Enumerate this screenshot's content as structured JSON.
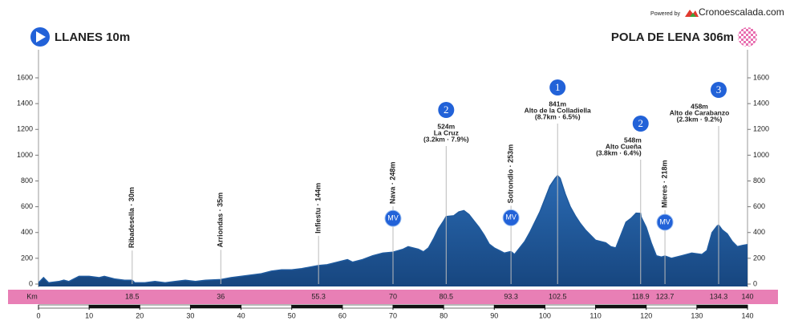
{
  "chart_data": {
    "type": "area",
    "powered_by": "Powered by",
    "brand": "Cronoescalada.com",
    "start": "LLANES 10m",
    "finish": "POLA DE LENA 306m",
    "km_title": "Km",
    "color": "#1f5a9e",
    "x": [
      0,
      1,
      2,
      4,
      5,
      6,
      7,
      8,
      10,
      12,
      13,
      15,
      17,
      18.5,
      19,
      21,
      23,
      25,
      27,
      29,
      31,
      33,
      36,
      38,
      40,
      42,
      44,
      46,
      48,
      50,
      52,
      55.3,
      57,
      59,
      61,
      62,
      64,
      66,
      68,
      70,
      72,
      73,
      75,
      76,
      77,
      78,
      79,
      80,
      80.5,
      82,
      83,
      84,
      85,
      86,
      87,
      88,
      89,
      90,
      91,
      92,
      93.3,
      94,
      95,
      96,
      97,
      98,
      99,
      100,
      101,
      102,
      102.5,
      103,
      104,
      105,
      106,
      107,
      108,
      109,
      110,
      111,
      112,
      113,
      114,
      115,
      116,
      117,
      118,
      118.9,
      119,
      120,
      121,
      122,
      123,
      123.7,
      125,
      127,
      129,
      131,
      132,
      133,
      134,
      134.3,
      135,
      136,
      137,
      138,
      139,
      140
    ],
    "values": [
      10,
      50,
      10,
      20,
      30,
      20,
      40,
      60,
      60,
      50,
      60,
      40,
      30,
      30,
      10,
      10,
      20,
      10,
      20,
      30,
      20,
      30,
      35,
      50,
      60,
      70,
      80,
      100,
      110,
      110,
      120,
      144,
      150,
      170,
      190,
      170,
      190,
      220,
      240,
      248,
      270,
      290,
      270,
      250,
      280,
      350,
      430,
      490,
      524,
      530,
      560,
      570,
      540,
      490,
      440,
      380,
      310,
      280,
      260,
      240,
      253,
      230,
      280,
      330,
      400,
      480,
      560,
      660,
      760,
      820,
      841,
      820,
      700,
      600,
      530,
      470,
      420,
      380,
      340,
      330,
      320,
      290,
      280,
      380,
      480,
      510,
      550,
      548,
      520,
      440,
      320,
      220,
      210,
      218,
      200,
      220,
      240,
      230,
      260,
      400,
      450,
      458,
      420,
      390,
      330,
      290,
      300,
      306
    ],
    "xlim": [
      0,
      140
    ],
    "xticks": [
      0,
      10,
      20,
      30,
      40,
      50,
      60,
      70,
      80,
      90,
      100,
      110,
      120,
      130,
      140
    ],
    "ylim": [
      0,
      1600
    ],
    "yticks": [
      0,
      200,
      400,
      600,
      800,
      1000,
      1200,
      1400,
      1600
    ],
    "points": [
      {
        "km": 18.5,
        "town": "Ribadesella · 30m",
        "elevation": 30
      },
      {
        "km": 36,
        "town": "Arriondas · 35m",
        "elevation": 35
      },
      {
        "km": 55.3,
        "town": "Infiestu · 144m",
        "elevation": 144
      },
      {
        "km": 70,
        "town": "Nava · 248m",
        "elevation": 248,
        "marker": "MV"
      },
      {
        "km": 80.5,
        "category": "2",
        "climb": [
          "524m",
          "La Cruz",
          "(3.2km · 7.9%)"
        ]
      },
      {
        "km": 93.3,
        "town": "Sotrondio · 253m",
        "elevation": 253,
        "marker": "MV"
      },
      {
        "km": 102.5,
        "category": "1",
        "climb": [
          "841m",
          "Alto de la Colladiella",
          "(8.7km · 6.5%)"
        ]
      },
      {
        "km": 118.9,
        "category": "2",
        "climb": [
          "548m",
          "Alto Cueña",
          "(3.8km · 6.4%)"
        ]
      },
      {
        "km": 123.7,
        "town": "Mieres · 218m",
        "elevation": 218,
        "marker": "MV"
      },
      {
        "km": 134.3,
        "category": "3",
        "climb": [
          "458m",
          "Alto de Carabanzo",
          "(2.3km · 9.2%)"
        ]
      },
      {
        "km": 140
      }
    ]
  }
}
